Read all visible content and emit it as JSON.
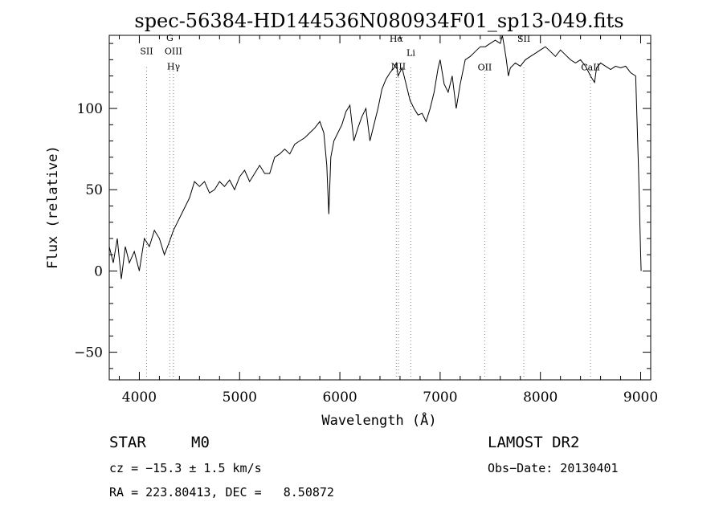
{
  "chart_data": {
    "type": "line",
    "title": "spec-56384-HD144536N080934F01_sp13-049.fits",
    "xlabel": "Wavelength (Å)",
    "ylabel": "Flux (relative)",
    "xlim": [
      3700,
      9100
    ],
    "ylim": [
      -67,
      145
    ],
    "xticks": [
      4000,
      5000,
      6000,
      7000,
      8000,
      9000
    ],
    "yticks": [
      -50,
      0,
      50,
      100
    ],
    "series": [
      {
        "x": [
          3700,
          3740,
          3780,
          3820,
          3860,
          3900,
          3950,
          4000,
          4050,
          4100,
          4150,
          4200,
          4250,
          4300,
          4340,
          4380,
          4420,
          4460,
          4500,
          4550,
          4600,
          4650,
          4700,
          4750,
          4800,
          4850,
          4900,
          4950,
          5000,
          5050,
          5100,
          5150,
          5200,
          5250,
          5300,
          5350,
          5400,
          5450,
          5500,
          5550,
          5600,
          5650,
          5700,
          5750,
          5800,
          5840,
          5870,
          5890,
          5910,
          5940,
          5980,
          6020,
          6060,
          6100,
          6140,
          6180,
          6220,
          6260,
          6300,
          6340,
          6380,
          6420,
          6460,
          6500,
          6540,
          6563,
          6580,
          6620,
          6660,
          6700,
          6740,
          6780,
          6820,
          6860,
          6900,
          6940,
          6980,
          7000,
          7040,
          7080,
          7120,
          7160,
          7200,
          7250,
          7300,
          7350,
          7400,
          7450,
          7500,
          7550,
          7600,
          7620,
          7640,
          7660,
          7680,
          7700,
          7750,
          7800,
          7850,
          7900,
          7950,
          8000,
          8050,
          8100,
          8150,
          8200,
          8250,
          8300,
          8350,
          8400,
          8450,
          8500,
          8540,
          8560,
          8600,
          8650,
          8700,
          8750,
          8800,
          8850,
          8900,
          8950,
          8980,
          9000,
          9005
        ],
        "y": [
          15,
          5,
          20,
          -5,
          15,
          5,
          12,
          0,
          20,
          15,
          25,
          20,
          10,
          18,
          25,
          30,
          35,
          40,
          45,
          55,
          52,
          55,
          48,
          50,
          55,
          52,
          56,
          50,
          58,
          62,
          55,
          60,
          65,
          60,
          60,
          70,
          72,
          75,
          72,
          78,
          80,
          82,
          85,
          88,
          92,
          85,
          65,
          35,
          70,
          80,
          85,
          90,
          98,
          102,
          80,
          88,
          95,
          100,
          80,
          90,
          100,
          112,
          118,
          122,
          125,
          128,
          120,
          125,
          115,
          105,
          100,
          96,
          97,
          92,
          100,
          110,
          125,
          130,
          115,
          110,
          120,
          100,
          115,
          130,
          132,
          135,
          138,
          138,
          140,
          142,
          140,
          145,
          138,
          130,
          120,
          125,
          128,
          126,
          130,
          132,
          134,
          136,
          138,
          135,
          132,
          136,
          133,
          130,
          128,
          130,
          126,
          120,
          116,
          125,
          128,
          126,
          124,
          126,
          125,
          126,
          122,
          120,
          60,
          10,
          0
        ]
      }
    ],
    "lines": [
      {
        "label": "SII",
        "x": 4072,
        "label_y": 133.5,
        "dx": 0
      },
      {
        "label": "G",
        "x": 4304,
        "label_y": 141.5,
        "dx": 0
      },
      {
        "label": "OIII",
        "x": 4340,
        "label_y": 133.5,
        "dx": 0
      },
      {
        "label": "Hγ",
        "x": 4341,
        "label_y": 124,
        "dx": 0
      },
      {
        "label": "Hα",
        "x": 6563,
        "label_y": 141,
        "dx": 0
      },
      {
        "label": "Li",
        "x": 6708,
        "label_y": 132.5,
        "dx": 0
      },
      {
        "label": "NII",
        "x": 6584,
        "label_y": 124,
        "dx": 0
      },
      {
        "label": "OII",
        "x": 7445,
        "label_y": 123.5,
        "dx": 0
      },
      {
        "label": "SII",
        "x": 7835,
        "label_y": 141,
        "dx": 0
      },
      {
        "label": "CaII",
        "x": 8500,
        "label_y": 123.5,
        "dx": 0
      }
    ]
  },
  "info": {
    "object_type": "STAR",
    "subclass": "M0",
    "survey": "LAMOST DR2",
    "cz": "cz = −15.3 ± 1.5 km/s",
    "obs_date": "Obs−Date: 20130401",
    "radec": "RA = 223.80413, DEC =   8.50872"
  }
}
